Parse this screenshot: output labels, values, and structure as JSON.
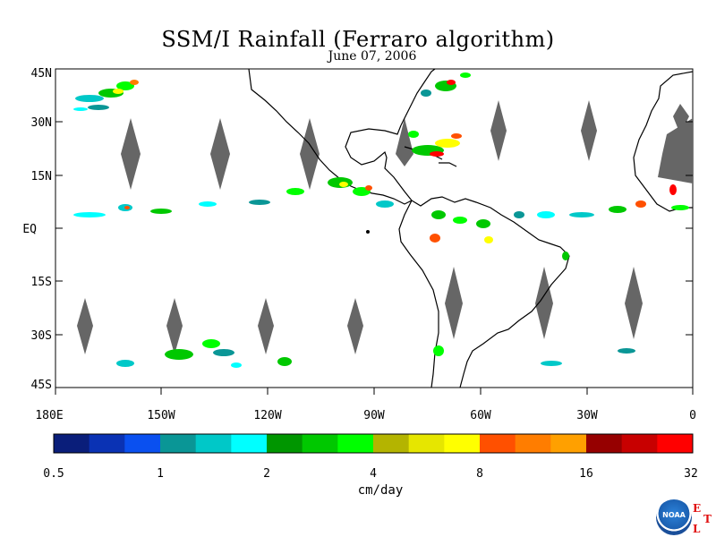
{
  "title": "SSM/I Rainfall (Ferraro algorithm)",
  "date": "June 07, 2006",
  "lat_labels": [
    "45N",
    "30N",
    "15N",
    "EQ",
    "15S",
    "30S",
    "45S"
  ],
  "lon_labels": [
    "180E",
    "150W",
    "120W",
    "90W",
    "60W",
    "30W",
    "0"
  ],
  "colorbar": {
    "colors": [
      "#0a1e7a",
      "#0a32b4",
      "#0a50f0",
      "#0a9696",
      "#00c8c8",
      "#00ffff",
      "#009600",
      "#00c800",
      "#00ff00",
      "#b4b400",
      "#e6e600",
      "#ffff00",
      "#ff5000",
      "#ff7d00",
      "#ffa000",
      "#960000",
      "#c80000",
      "#ff0000"
    ],
    "tick_labels": [
      "0.5",
      "1",
      "2",
      "4",
      "8",
      "16",
      "32"
    ],
    "units": "cm/day"
  },
  "logo": {
    "text": "NOAA",
    "letters": [
      "E",
      "T",
      "L"
    ]
  },
  "colors": {
    "swath_gap": "#666666",
    "coast": "#000000"
  }
}
